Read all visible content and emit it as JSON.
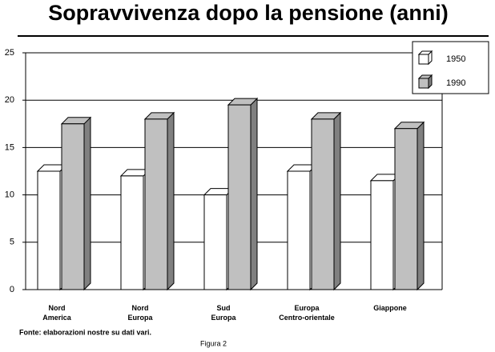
{
  "chart_data": {
    "type": "bar3d",
    "title": "Sopravvivenza dopo la pensione (anni)",
    "categories": [
      "Nord America",
      "Nord Europa",
      "Sud Europa",
      "Europa Centro-orientale",
      "Giappone"
    ],
    "series": [
      {
        "name": "1950",
        "color": "#ffffff",
        "values": [
          12.5,
          12,
          10,
          12.5,
          11.5
        ]
      },
      {
        "name": "1990",
        "color": "#c0c0c0",
        "values": [
          17.5,
          18,
          19.5,
          18,
          17
        ]
      }
    ],
    "ylim": [
      0,
      25
    ],
    "yticks": [
      0,
      5,
      10,
      15,
      20,
      25
    ],
    "grid": true,
    "legend": "upper right",
    "source": "Fonte: elaborazioni nostre su dati vari.",
    "caption": "Figura 2"
  }
}
